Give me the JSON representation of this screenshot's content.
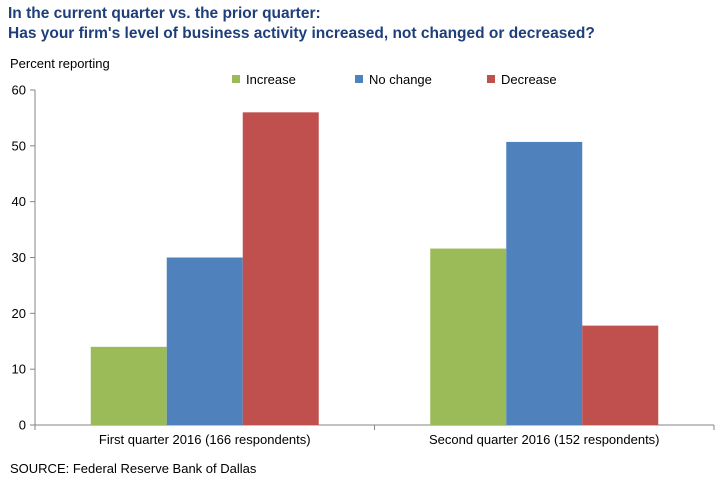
{
  "title_line1": "In the current quarter vs. the prior quarter:",
  "title_line2": "Has your firm's level of business activity increased, not changed or decreased?",
  "source": "SOURCE: Federal Reserve Bank of Dallas",
  "chart_data": {
    "type": "bar",
    "ylabel": "Percent reporting",
    "xlabel": "",
    "ylim": [
      0,
      60
    ],
    "yticks": [
      0,
      10,
      20,
      30,
      40,
      50,
      60
    ],
    "grid": false,
    "legend_position": "top",
    "categories": [
      "First quarter 2016 (166 respondents)",
      "Second quarter 2016 (152 respondents)"
    ],
    "series": [
      {
        "name": "Increase",
        "color": "#9bbb59",
        "values": [
          14,
          31.6
        ]
      },
      {
        "name": "No change",
        "color": "#4f81bd",
        "values": [
          30,
          50.7
        ]
      },
      {
        "name": "Decrease",
        "color": "#c0504d",
        "values": [
          56,
          17.8
        ]
      }
    ]
  }
}
